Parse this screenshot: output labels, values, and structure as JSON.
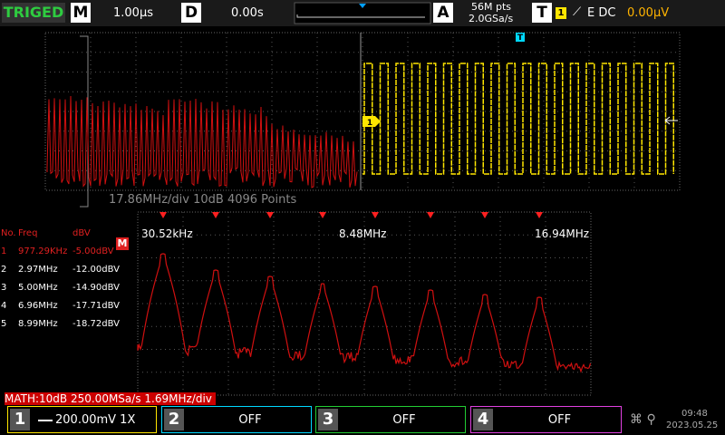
{
  "status": "TRIGED",
  "timebase": {
    "label": "M",
    "value": "1.00µs"
  },
  "delay": {
    "label": "D",
    "value": "0.00s"
  },
  "acquisition": {
    "label": "A",
    "points": "56M pts",
    "rate": "2.0GSa/s"
  },
  "trigger": {
    "label": "T",
    "channel": "1",
    "mode": "E DC",
    "level": "0.00µV"
  },
  "markers": {
    "trigger": "T",
    "channel": "1",
    "math": "M"
  },
  "fft_overlay": "17.86MHz/div  10dB 4096 Points",
  "peak_table": {
    "headers": [
      "No.",
      "Freq",
      "dBV"
    ],
    "rows": [
      [
        "1",
        "977.29KHz",
        "-5.00dBV"
      ],
      [
        "2",
        "2.97MHz",
        "-12.00dBV"
      ],
      [
        "3",
        "5.00MHz",
        "-14.90dBV"
      ],
      [
        "4",
        "6.96MHz",
        "-17.71dBV"
      ],
      [
        "5",
        "8.99MHz",
        "-18.72dBV"
      ]
    ]
  },
  "zoom_labels": [
    "30.52kHz",
    "8.48MHz",
    "16.94MHz"
  ],
  "math_info": "MATH:10dB 250.00MSa/s 1.69MHz/div",
  "channels": [
    {
      "number": "1",
      "value": "200.00mV 1X"
    },
    {
      "number": "2",
      "value": "OFF"
    },
    {
      "number": "3",
      "value": "OFF"
    },
    {
      "number": "4",
      "value": "OFF"
    }
  ],
  "clock": {
    "time": "09:48",
    "date": "2023.05.25"
  }
}
